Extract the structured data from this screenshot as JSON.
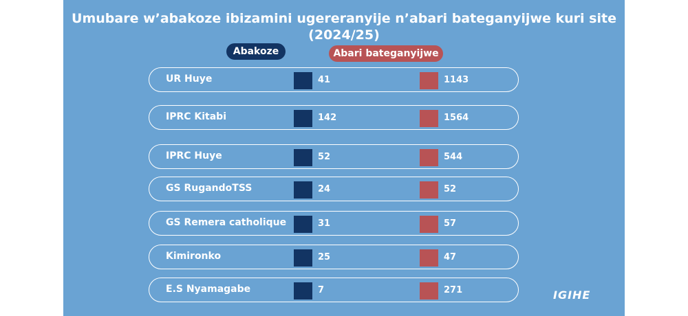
{
  "header": {
    "title_line1": "Umubare w’abakoze ibizamini ugereranyije n’abari bateganyijwe kuri site",
    "title_line2": "(2024/25)"
  },
  "legend": {
    "done": "Abakoze",
    "expected": "Abari bateganyijwe"
  },
  "table": {
    "rows": [
      [
        "UR Huye",
        41,
        1143
      ],
      [
        "IPRC Kitabi",
        142,
        1564
      ],
      [
        "IPRC Huye",
        52,
        544
      ],
      [
        "GS RugandoTSS",
        24,
        52
      ],
      [
        "GS Remera catholique",
        31,
        57
      ],
      [
        "Kimironko",
        25,
        47
      ],
      [
        "E.S Nyamagabe",
        7,
        271
      ]
    ]
  },
  "logo": "IGIHE"
}
